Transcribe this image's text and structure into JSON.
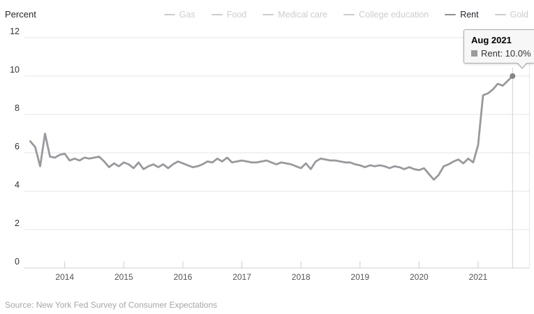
{
  "legend": {
    "items": [
      {
        "label": "Gas",
        "active": false
      },
      {
        "label": "Food",
        "active": false
      },
      {
        "label": "Medical care",
        "active": false
      },
      {
        "label": "College education",
        "active": false
      },
      {
        "label": "Rent",
        "active": true
      },
      {
        "label": "Gold",
        "active": false
      }
    ]
  },
  "tooltip": {
    "title": "Aug 2021",
    "text": "Rent: 10.0%"
  },
  "footer": {
    "source": "Source: New York Fed Survey of Consumer Expectations"
  },
  "colors": {
    "series": "#98999d",
    "end_marker": "#85868b",
    "legend_inactive": "#cdcdcd",
    "legend_active_dash": "#8d8e93",
    "legend_active_text": "#21242a",
    "grid": "#e6e6e6",
    "axis": "#d0d0d0",
    "tick": "#cccccc",
    "crosshair": "#cfcfcf",
    "tooltip_square": "#9b9b9b"
  },
  "chart_data": {
    "type": "line",
    "title": "",
    "ylabel": "Percent",
    "xlabel": "",
    "ylim": [
      0,
      12
    ],
    "yticks": [
      0,
      2,
      4,
      6,
      8,
      10,
      12
    ],
    "x_tick_years": [
      2014,
      2015,
      2016,
      2017,
      2018,
      2019,
      2020,
      2021
    ],
    "frequency": "monthly",
    "x_start": "2013-06",
    "x_end": "2021-08",
    "grid": "horizontal",
    "legend_position": "top-right",
    "highlight": {
      "x": "Aug 2021",
      "series": "Rent",
      "value": 10.0
    },
    "series": [
      {
        "name": "Gas",
        "visible": false
      },
      {
        "name": "Food",
        "visible": false
      },
      {
        "name": "Medical care",
        "visible": false
      },
      {
        "name": "College education",
        "visible": false
      },
      {
        "name": "Rent",
        "visible": true,
        "values": [
          6.6,
          6.3,
          5.3,
          7.0,
          5.8,
          5.75,
          5.9,
          5.95,
          5.6,
          5.7,
          5.6,
          5.75,
          5.7,
          5.75,
          5.8,
          5.55,
          5.25,
          5.45,
          5.3,
          5.5,
          5.4,
          5.2,
          5.5,
          5.15,
          5.3,
          5.4,
          5.25,
          5.4,
          5.2,
          5.4,
          5.55,
          5.45,
          5.35,
          5.25,
          5.3,
          5.4,
          5.55,
          5.5,
          5.7,
          5.55,
          5.75,
          5.5,
          5.55,
          5.6,
          5.55,
          5.5,
          5.5,
          5.55,
          5.6,
          5.5,
          5.4,
          5.5,
          5.45,
          5.4,
          5.3,
          5.2,
          5.45,
          5.15,
          5.55,
          5.7,
          5.65,
          5.6,
          5.6,
          5.55,
          5.5,
          5.5,
          5.4,
          5.35,
          5.25,
          5.35,
          5.3,
          5.35,
          5.3,
          5.2,
          5.3,
          5.25,
          5.15,
          5.25,
          5.15,
          5.1,
          5.2,
          4.9,
          4.6,
          4.85,
          5.3,
          5.4,
          5.55,
          5.65,
          5.45,
          5.7,
          5.5,
          6.4,
          9.0,
          9.1,
          9.3,
          9.6,
          9.5,
          9.75,
          10.0
        ]
      },
      {
        "name": "Gold",
        "visible": false
      }
    ]
  }
}
